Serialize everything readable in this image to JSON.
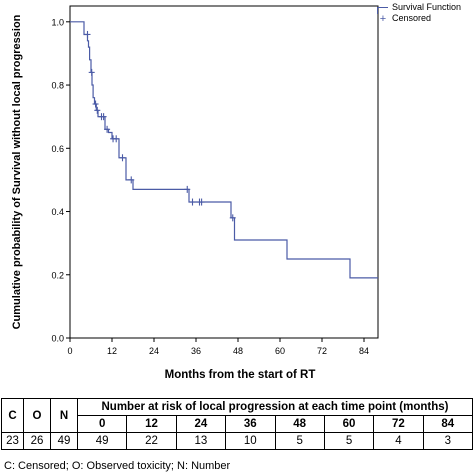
{
  "chart_data": {
    "type": "line",
    "xlabel": "Months from the start of RT",
    "ylabel": "Cumulative probability of Survival without local progression",
    "xlim": [
      0,
      88
    ],
    "ylim": [
      0,
      1.05
    ],
    "xticks": [
      0,
      12,
      24,
      36,
      48,
      60,
      72,
      84
    ],
    "yticks": [
      0.0,
      0.2,
      0.4,
      0.6,
      0.8,
      1.0
    ],
    "ytick_labels": [
      "0.0",
      "0.2",
      "0.4",
      "0.6",
      "0.8",
      "1.0"
    ],
    "legend": [
      "Survival Function",
      "Censored"
    ],
    "legend_position": "top-right",
    "grid": false,
    "colors": {
      "line": "#4b5ba6"
    },
    "series": [
      {
        "name": "Survival Function",
        "step_points": [
          [
            0,
            1.0
          ],
          [
            4,
            1.0
          ],
          [
            4,
            0.96
          ],
          [
            5,
            0.96
          ],
          [
            5,
            0.94
          ],
          [
            5.3,
            0.94
          ],
          [
            5.3,
            0.92
          ],
          [
            5.6,
            0.92
          ],
          [
            5.6,
            0.88
          ],
          [
            6,
            0.88
          ],
          [
            6,
            0.84
          ],
          [
            6.3,
            0.84
          ],
          [
            6.3,
            0.8
          ],
          [
            6.6,
            0.8
          ],
          [
            6.6,
            0.76
          ],
          [
            7,
            0.76
          ],
          [
            7,
            0.74
          ],
          [
            7.5,
            0.74
          ],
          [
            7.5,
            0.72
          ],
          [
            8,
            0.72
          ],
          [
            8,
            0.7
          ],
          [
            10,
            0.7
          ],
          [
            10,
            0.66
          ],
          [
            11,
            0.66
          ],
          [
            11,
            0.65
          ],
          [
            12,
            0.65
          ],
          [
            12,
            0.63
          ],
          [
            14,
            0.63
          ],
          [
            14,
            0.57
          ],
          [
            16,
            0.57
          ],
          [
            16,
            0.5
          ],
          [
            18,
            0.5
          ],
          [
            18,
            0.47
          ],
          [
            34,
            0.47
          ],
          [
            34,
            0.43
          ],
          [
            46,
            0.43
          ],
          [
            46,
            0.38
          ],
          [
            47,
            0.38
          ],
          [
            47,
            0.31
          ],
          [
            62,
            0.31
          ],
          [
            62,
            0.25
          ],
          [
            80,
            0.25
          ],
          [
            80,
            0.19
          ],
          [
            88,
            0.19
          ]
        ]
      },
      {
        "name": "Censored",
        "points": [
          [
            5,
            0.96
          ],
          [
            6.2,
            0.84
          ],
          [
            7.3,
            0.74
          ],
          [
            7.8,
            0.72
          ],
          [
            9,
            0.7
          ],
          [
            9.6,
            0.7
          ],
          [
            10.6,
            0.66
          ],
          [
            12.3,
            0.63
          ],
          [
            13.2,
            0.63
          ],
          [
            15,
            0.57
          ],
          [
            17.5,
            0.5
          ],
          [
            33.5,
            0.47
          ],
          [
            35,
            0.43
          ],
          [
            37,
            0.43
          ],
          [
            37.6,
            0.43
          ],
          [
            46.5,
            0.38
          ]
        ]
      }
    ]
  },
  "risk_table": {
    "headers": [
      "C",
      "O",
      "N",
      "Number at risk of local progression at each time point (months)"
    ],
    "timepoints": [
      "0",
      "12",
      "24",
      "36",
      "48",
      "60",
      "72",
      "84"
    ],
    "values": {
      "c": "23",
      "o": "26",
      "n": "49",
      "counts": [
        "49",
        "22",
        "13",
        "10",
        "5",
        "5",
        "4",
        "3"
      ]
    }
  },
  "footnote": "C: Censored; O: Observed toxicity; N: Number"
}
